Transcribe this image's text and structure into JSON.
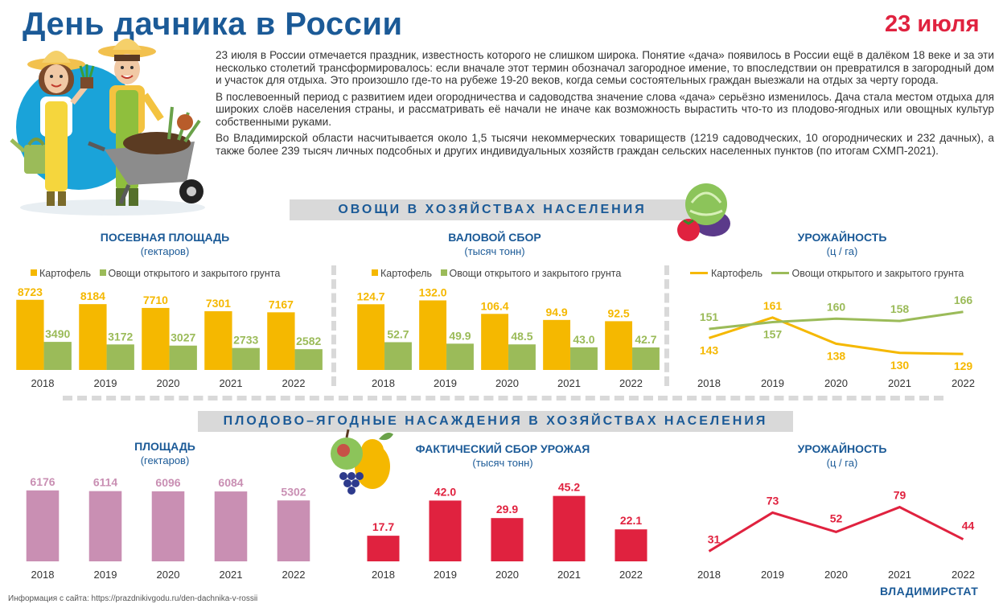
{
  "header": {
    "title": "День дачника в России",
    "date": "23 июля"
  },
  "intro": [
    "23 июля в России отмечается праздник, известность которого не слишком широка. Понятие «дача» появилось в России ещё в далёком 18 веке и за эти несколько столетий трансформировалось: если вначале этот термин обозначал загородное имение, то впоследствии он превратился в загородный дом и участок для отдыха. Это произошло где-то на рубеже 19-20 веков, когда семьи состоятельных граждан выезжали на отдых за черту города.",
    "В послевоенный период с развитием идеи огородничества и садоводства значение слова «дача» серьёзно изменилось. Дача стала местом отдыха для широких слоёв населения страны, и рассматривать её начали не иначе как возможность вырастить что-то из плодово-ягодных или овощных культур собственными руками.",
    "Во Владимирской области насчитывается около 1,5 тысячи некоммерческих товариществ (1219 садоводческих, 10 огороднических и 232 дачных), а также более 239 тысяч личных подсобных и других индивидуальных хозяйств граждан сельских населенных пунктов (по итогам  СХМП-2021)."
  ],
  "sections": {
    "vegetables": "ОВОЩИ В ХОЗЯЙСТВАХ НАСЕЛЕНИЯ",
    "fruits": "ПЛОДОВО–ЯГОДНЫЕ НАСАЖДЕНИЯ В ХОЗЯЙСТВАХ НАСЕЛЕНИЯ"
  },
  "colors": {
    "potato": "#f5b800",
    "vegetables": "#9bbb59",
    "area": "#c98fb3",
    "harvest": "#e0223f",
    "title": "#1b5a97"
  },
  "chart_data": [
    {
      "id": "veg-area",
      "type": "bar",
      "title": "ПОСЕВНАЯ ПЛОЩАДЬ",
      "subtitle": "(гектаров)",
      "categories": [
        "2018",
        "2019",
        "2020",
        "2021",
        "2022"
      ],
      "series": [
        {
          "name": "Картофель",
          "values": [
            8723,
            8184,
            7710,
            7301,
            7167
          ],
          "labels": [
            "8723",
            "8184",
            "7710",
            "7301",
            "7167"
          ]
        },
        {
          "name": "Овощи открытого  и закрытого  грунта",
          "values": [
            3490,
            3172,
            3027,
            2733,
            2582
          ],
          "labels": [
            "3490",
            "3172",
            "3027",
            "2733",
            "2582"
          ]
        }
      ],
      "ylim": [
        0,
        9500
      ]
    },
    {
      "id": "veg-gross",
      "type": "bar",
      "title": "ВАЛОВОЙ СБОР",
      "subtitle": "(тысяч тонн)",
      "categories": [
        "2018",
        "2019",
        "2020",
        "2021",
        "2022"
      ],
      "series": [
        {
          "name": "Картофель",
          "values": [
            124.7,
            132.0,
            106.4,
            94.9,
            92.5
          ],
          "labels": [
            "124.7",
            "132.0",
            "106.4",
            "94.9",
            "92.5"
          ]
        },
        {
          "name": "Овощи открытого  и закрытого  грунта",
          "values": [
            52.7,
            49.9,
            48.5,
            43.0,
            42.7
          ],
          "labels": [
            "52.7",
            "49.9",
            "48.5",
            "43.0",
            "42.7"
          ]
        }
      ],
      "ylim": [
        0,
        145
      ]
    },
    {
      "id": "veg-yield",
      "type": "line",
      "title": "УРОЖАЙНОСТЬ",
      "subtitle": "(ц / га)",
      "categories": [
        "2018",
        "2019",
        "2020",
        "2021",
        "2022"
      ],
      "series": [
        {
          "name": "Картофель",
          "values": [
            143,
            161,
            138,
            130,
            129
          ],
          "labels": [
            "143",
            "161",
            "138",
            "130",
            "129"
          ]
        },
        {
          "name": "Овощи открытого  и закрытого  грунта",
          "values": [
            151,
            157,
            160,
            158,
            166
          ],
          "labels": [
            "151",
            "157",
            "160",
            "158",
            "166"
          ]
        }
      ],
      "ylim": [
        115,
        175
      ]
    },
    {
      "id": "fruit-area",
      "type": "bar",
      "title": "ПЛОЩАДЬ",
      "subtitle": "(гектаров)",
      "categories": [
        "2018",
        "2019",
        "2020",
        "2021",
        "2022"
      ],
      "series": [
        {
          "name": "Площадь",
          "values": [
            6176,
            6114,
            6096,
            6084,
            5302
          ],
          "labels": [
            "6176",
            "6114",
            "6096",
            "6084",
            "5302"
          ]
        }
      ],
      "ylim": [
        0,
        6300
      ]
    },
    {
      "id": "fruit-harvest",
      "type": "bar",
      "title": "ФАКТИЧЕСКИЙ СБОР УРОЖАЯ",
      "subtitle": "(тысяч тонн)",
      "categories": [
        "2018",
        "2019",
        "2020",
        "2021",
        "2022"
      ],
      "series": [
        {
          "name": "Сбор",
          "values": [
            17.7,
            42.0,
            29.9,
            45.2,
            22.1
          ],
          "labels": [
            "17.7",
            "42.0",
            "29.9",
            "45.2",
            "22.1"
          ]
        }
      ],
      "ylim": [
        0,
        50
      ]
    },
    {
      "id": "fruit-yield",
      "type": "line",
      "title": "УРОЖАЙНОСТЬ",
      "subtitle": "(ц / га)",
      "categories": [
        "2018",
        "2019",
        "2020",
        "2021",
        "2022"
      ],
      "series": [
        {
          "name": "Урожайность",
          "values": [
            31,
            73,
            52,
            79,
            44
          ],
          "labels": [
            "31",
            "73",
            "52",
            "79",
            "44"
          ]
        }
      ],
      "ylim": [
        20,
        90
      ]
    }
  ],
  "footer": {
    "source": "Информация с сайта: https://prazdnikivgodu.ru/den-dachnika-v-rossii",
    "brand": "ВЛАДИМИРСТАТ"
  }
}
